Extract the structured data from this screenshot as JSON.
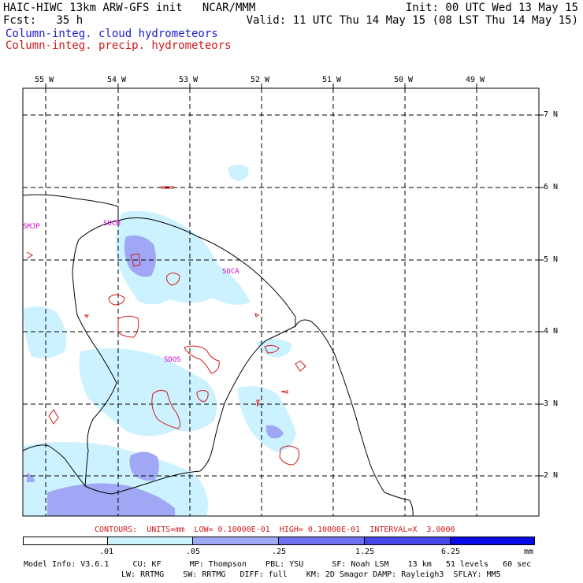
{
  "header": {
    "line1_left": "HAIC-HIWC 13km ARW-GFS init   NCAR/MMM",
    "line1_right": "Init: 00 UTC Wed 13 May 15",
    "line2_left": "Fcst:   35 h",
    "line2_right": "Valid: 11 UTC Thu 14 May 15 (08 LST Thu 14 May 15)",
    "field1": "Column-integ. cloud hydrometeors",
    "field2": "Column-integ. precip. hydrometeors"
  },
  "lon_labels": [
    "55 W",
    "54 W",
    "53 W",
    "52 W",
    "51 W",
    "50 W",
    "49 W"
  ],
  "lat_labels": [
    "7 N",
    "6 N",
    "5 N",
    "4 N",
    "3 N",
    "2 N"
  ],
  "stations": [
    "SMJP",
    "SOCM",
    "SOCA",
    "SDOS"
  ],
  "contours_text": "CONTOURS:  UNITS=mm  LOW= 0.10000E-01  HIGH= 0.10000E-01  INTERVAL=X  3.0000",
  "scale": {
    "labels": [
      ".01",
      ".05",
      ".25",
      "1.25",
      "6.25"
    ],
    "unit": "mm",
    "colors": [
      "#ffffff",
      "#ccf2ff",
      "#a0a8f5",
      "#7070ee",
      "#4646e6",
      "#0a0ae6"
    ]
  },
  "model_info": {
    "line1": "Model Info: V3.6.1     CU: KF      MP: Thompson    PBL: YSU      SF: Noah LSM    13 km   51 levels   60 sec",
    "line2": "LW: RRTMG    SW: RRTMG   DIFF: full    KM: 2D Smagor DAMP: Rayleigh3  SFLAY: MM5"
  },
  "colors": {
    "cloud_light": "#ccf2ff",
    "cloud_mid": "#a0a8f5",
    "precip_contour": "#d01a1a",
    "station_label": "#cc00cc"
  }
}
